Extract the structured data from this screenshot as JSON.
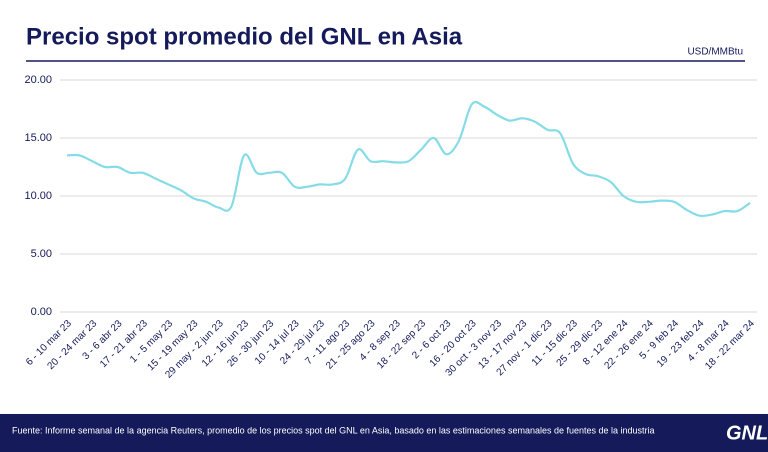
{
  "chart_data": {
    "type": "line",
    "title": "Precio spot promedio del GNL en Asia",
    "unit_label": "USD/MMBtu",
    "source": "Fuente: Informe semanal de la agencia Reuters, promedio de los precios spot del GNL en Asia, basado en las estimaciones semanales de fuentes de la industria",
    "logo": "GNL",
    "categories": [
      "6 - 10 mar 23",
      null,
      "20 - 24 mar 23",
      null,
      "3 - 6 abr 23",
      null,
      "17 - 21 abr 23",
      null,
      "1 - 5 may 23",
      null,
      "15 - 19 may 23",
      null,
      "29 may - 2 jun 23",
      null,
      "12 - 16 jun 23",
      null,
      "26 - 30 jun 23",
      null,
      "10 - 14 jul 23",
      null,
      "24 - 29 jul 23",
      null,
      "7 - 11 ago 23",
      null,
      "21 - 25 ago 23",
      null,
      "4 - 8 sep 23",
      null,
      "18 - 22 sep 23",
      null,
      "2 - 6 oct 23",
      null,
      "16 - 20 oct 23",
      null,
      "30 oct - 3 nov 23",
      null,
      "13 - 17 nov 23",
      null,
      "27 nov - 1 dic 23",
      null,
      "11 - 15 dic 23",
      null,
      "25 - 29 dic 23",
      null,
      "8 - 12 ene 24",
      null,
      "22 - 26 ene 24",
      null,
      "5 - 9 feb 24",
      null,
      "19 - 23 feb 24",
      null,
      "4 - 8 mar 24",
      null,
      "18 - 22 mar 24"
    ],
    "series": [
      {
        "name": "Precio spot",
        "color": "#86dce6",
        "values": [
          13.5,
          13.5,
          13.0,
          12.5,
          12.5,
          12.0,
          12.0,
          11.5,
          11.0,
          10.5,
          9.8,
          9.5,
          9.0,
          9.1,
          13.5,
          12.0,
          12.0,
          12.0,
          10.8,
          10.8,
          11.0,
          11.0,
          11.5,
          14.0,
          13.0,
          13.0,
          12.9,
          13.0,
          14.0,
          15.0,
          13.6,
          14.8,
          17.9,
          17.7,
          17.0,
          16.5,
          16.7,
          16.4,
          15.7,
          15.4,
          12.8,
          11.9,
          11.7,
          11.2,
          10.0,
          9.5,
          9.5,
          9.6,
          9.5,
          8.8,
          8.3,
          8.4,
          8.7,
          8.7,
          9.4
        ]
      }
    ],
    "ylim": [
      0,
      20
    ],
    "yticks": [
      {
        "value": 0,
        "label": "0.00"
      },
      {
        "value": 5,
        "label": "5.00"
      },
      {
        "value": 10,
        "label": "10.00"
      },
      {
        "value": 15,
        "label": "15.00"
      },
      {
        "value": 20,
        "label": "20.00"
      }
    ],
    "grid": true
  }
}
